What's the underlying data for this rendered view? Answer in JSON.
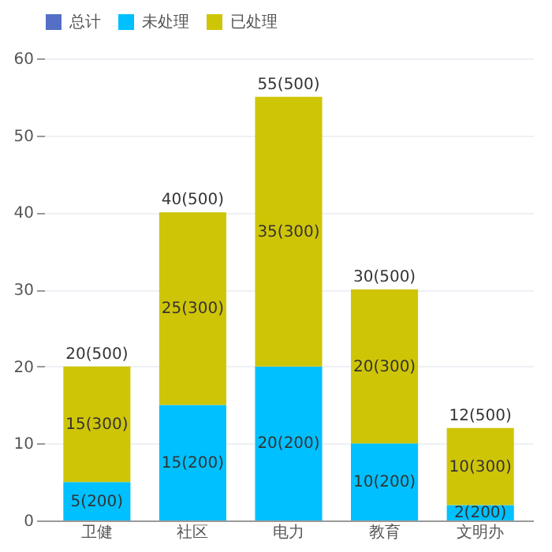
{
  "chart_data": {
    "type": "bar",
    "stacked": true,
    "categories": [
      "卫健",
      "社区",
      "电力",
      "教育",
      "文明办"
    ],
    "series": [
      {
        "name": "总计",
        "color": "#5470c6",
        "values": [
          null,
          null,
          null,
          null,
          null
        ]
      },
      {
        "name": "未处理",
        "color": "#00c0ff",
        "values": [
          5,
          15,
          20,
          10,
          2
        ],
        "value_labels": [
          "5(200)",
          "15(200)",
          "20(200)",
          "10(200)",
          "2(200)"
        ]
      },
      {
        "name": "已处理",
        "color": "#cfc507",
        "values": [
          15,
          25,
          35,
          20,
          10
        ],
        "value_labels": [
          "15(300)",
          "25(300)",
          "35(300)",
          "20(300)",
          "10(300)"
        ]
      }
    ],
    "totals": [
      "20(500)",
      "40(500)",
      "55(500)",
      "30(500)",
      "12(500)"
    ],
    "ylim": [
      0,
      60
    ],
    "yticks": [
      0,
      10,
      20,
      30,
      40,
      50,
      60
    ],
    "grid": "y",
    "legend": "top"
  }
}
